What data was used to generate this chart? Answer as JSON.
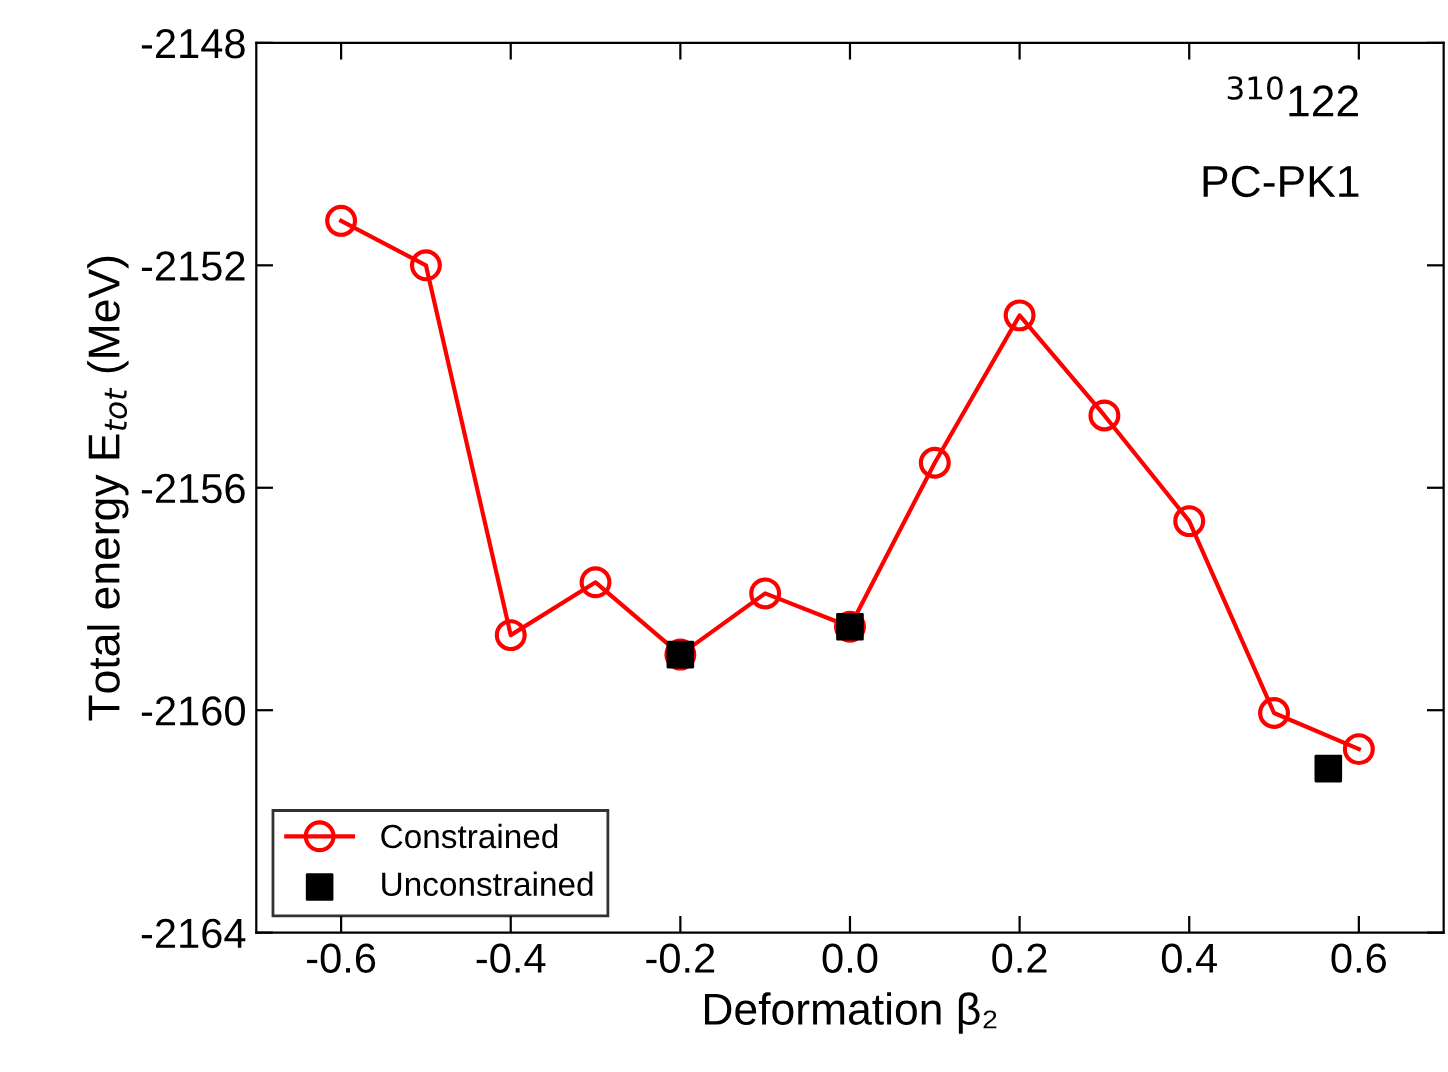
{
  "chart_data": {
    "type": "line",
    "xlabel": "Deformation β₂",
    "ylabel": "Total energy E$_{tot}$ (MeV)",
    "annotations": [
      "$^{310}$122",
      "PC-PK1"
    ],
    "x": [
      -0.6,
      -0.5,
      -0.4,
      -0.3,
      -0.2,
      -0.1,
      0.0,
      0.1,
      0.2,
      0.3,
      0.4,
      0.5,
      0.6
    ],
    "series": [
      {
        "name": "Constrained",
        "color": "#ff0000",
        "marker": "circle",
        "values": [
          -2151.2,
          -2152.0,
          -2158.65,
          -2157.7,
          -2159.0,
          -2157.9,
          -2158.5,
          -2155.55,
          -2152.9,
          -2154.7,
          -2156.6,
          -2160.05,
          -2160.7
        ]
      },
      {
        "name": "Unconstrained",
        "color": "#000000",
        "type": "scatter",
        "marker": "square",
        "x": [
          -0.2,
          0.0,
          0.564
        ],
        "values": [
          -2159.0,
          -2158.5,
          -2161.05
        ]
      }
    ],
    "xlim": [
      -0.7,
      0.7
    ],
    "xticks": [
      -0.6,
      -0.4,
      -0.2,
      {
        "value": 0.0,
        "label": "0.0"
      },
      0.2,
      0.4,
      0.6
    ],
    "ylim": [
      -2164,
      -2148
    ],
    "yticks": [
      -2164,
      -2160,
      -2156,
      -2152,
      -2148
    ],
    "grid": false,
    "legend": "bottom left"
  }
}
